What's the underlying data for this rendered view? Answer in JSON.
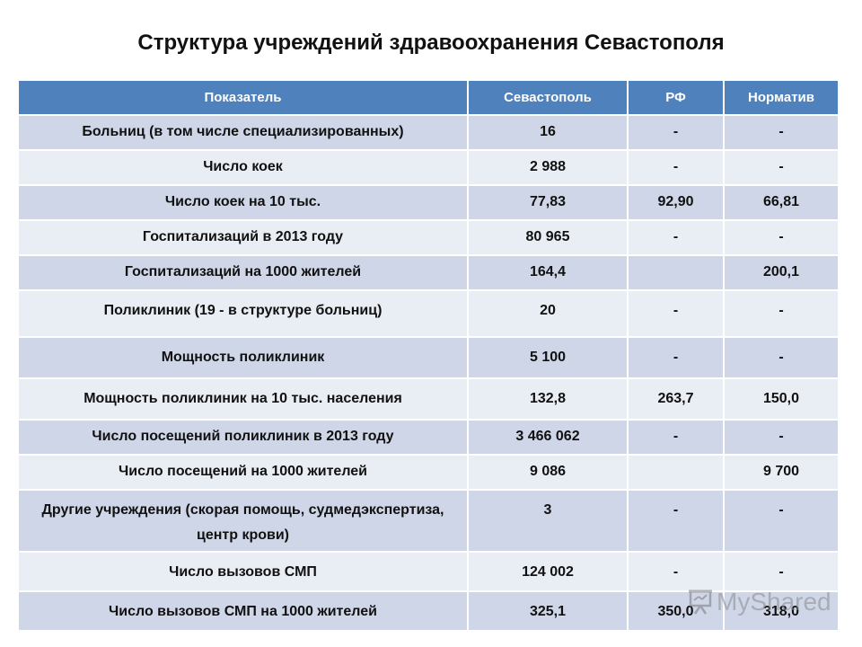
{
  "title": "Структура учреждений здравоохранения Севастополя",
  "table": {
    "headers": [
      "Показатель",
      "Севастополь",
      "РФ",
      "Норматив"
    ],
    "rows": [
      [
        "Больниц (в том числе специализированных)",
        "16",
        "-",
        "-"
      ],
      [
        "Число коек",
        "2 988",
        "-",
        "-"
      ],
      [
        "Число коек на 10 тыс.",
        "77,83",
        "92,90",
        "66,81"
      ],
      [
        "Госпитализаций в 2013 году",
        "80 965",
        "-",
        "-"
      ],
      [
        "Госпитализаций на 1000 жителей",
        "164,4",
        "",
        "200,1"
      ],
      [
        "Поликлиник (19 - в структуре больниц)",
        "20",
        "-",
        "-"
      ],
      [
        "Мощность поликлиник",
        "5 100",
        "-",
        "-"
      ],
      [
        "Мощность поликлиник на 10 тыс. населения",
        "132,8",
        "263,7",
        "150,0"
      ],
      [
        "Число посещений поликлиник в 2013 году",
        "3 466 062",
        "-",
        "-"
      ],
      [
        "Число посещений на 1000 жителей",
        "9 086",
        "",
        "9 700"
      ],
      [
        "Другие учреждения (скорая помощь, судмедэкспертиза,  центр крови)",
        "3",
        "-",
        "-"
      ],
      [
        "Число вызовов СМП",
        "124 002",
        "-",
        "-"
      ],
      [
        "Число вызовов СМП на 1000 жителей",
        "325,1",
        "350,0",
        "318,0"
      ]
    ]
  },
  "watermark": {
    "text": "MyShared",
    "icon": "presentation-icon"
  },
  "colors": {
    "header_bg": "#4f81bd",
    "row_odd_bg": "#cfd6e8",
    "row_even_bg": "#e9edf4"
  }
}
